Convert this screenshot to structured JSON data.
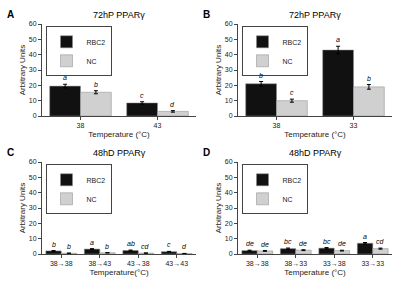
{
  "chart_data": [
    {
      "type": "bar",
      "title": "72hP PPARγ",
      "annotations": [
        "A"
      ],
      "categories": [
        "38",
        "43"
      ],
      "xlabel": "Temperature (°C)",
      "ylabel": "Arbitrary Units",
      "ylim": [
        0,
        60
      ],
      "yticks": [
        0,
        10,
        20,
        30,
        40,
        50,
        60
      ],
      "grid": false,
      "legend": "upper left",
      "series": [
        {
          "name": "RBC2",
          "color": "#111111",
          "values": [
            19.5,
            8.5
          ],
          "errors": [
            1.2,
            0.8
          ],
          "letters": [
            "a",
            "c"
          ]
        },
        {
          "name": "NC",
          "color": "#d0d0d0",
          "values": [
            15.5,
            3.0
          ],
          "errors": [
            1.0,
            0.5
          ],
          "letters": [
            "b",
            "d"
          ]
        }
      ]
    },
    {
      "type": "bar",
      "title": "72hP PPARγ",
      "annotations": [
        "B"
      ],
      "categories": [
        "38",
        "33"
      ],
      "xlabel": "Temperature (°C)",
      "ylabel": "Arbitrary Units",
      "ylim": [
        0,
        60
      ],
      "yticks": [
        0,
        10,
        20,
        30,
        40,
        50,
        60
      ],
      "grid": false,
      "legend": "upper left",
      "series": [
        {
          "name": "RBC2",
          "color": "#111111",
          "values": [
            21.0,
            43.0
          ],
          "errors": [
            1.5,
            2.5
          ],
          "letters": [
            "b",
            "a"
          ]
        },
        {
          "name": "NC",
          "color": "#d0d0d0",
          "values": [
            10.0,
            19.0
          ],
          "errors": [
            1.0,
            1.5
          ],
          "letters": [
            "c",
            "b"
          ]
        }
      ]
    },
    {
      "type": "bar",
      "title": "48hD PPARγ",
      "annotations": [
        "C"
      ],
      "categories": [
        "38→38",
        "38→43",
        "43→38",
        "43→43"
      ],
      "xlabel": "Temperature(°C)",
      "ylabel": "Arbitrary Units",
      "ylim": [
        0,
        60
      ],
      "yticks": [
        0,
        10,
        20,
        30,
        40,
        50,
        60
      ],
      "grid": false,
      "legend": "upper left",
      "series": [
        {
          "name": "RBC2",
          "color": "#111111",
          "values": [
            2.0,
            3.2,
            2.3,
            1.5
          ],
          "errors": [
            0.25,
            0.3,
            0.25,
            0.2
          ],
          "letters": [
            "b",
            "a",
            "ab",
            "c"
          ]
        },
        {
          "name": "NC",
          "color": "#d0d0d0",
          "values": [
            0.5,
            0.8,
            0.6,
            0.3
          ],
          "errors": [
            0.1,
            0.15,
            0.1,
            0.08
          ],
          "letters": [
            "b",
            "b",
            "cd",
            "d"
          ]
        }
      ]
    },
    {
      "type": "bar",
      "title": "48hD PPARγ",
      "annotations": [
        "D"
      ],
      "categories": [
        "38→38",
        "38→33",
        "33→38",
        "33→33"
      ],
      "xlabel": "Temperature (°C)",
      "ylabel": "Arbitrary Units",
      "ylim": [
        0,
        60
      ],
      "yticks": [
        0,
        10,
        20,
        30,
        40,
        50,
        60
      ],
      "grid": false,
      "legend": "upper left",
      "series": [
        {
          "name": "RBC2",
          "color": "#111111",
          "values": [
            2.2,
            3.5,
            3.8,
            7.0
          ],
          "errors": [
            0.3,
            0.4,
            0.4,
            0.5
          ],
          "letters": [
            "de",
            "bc",
            "bc",
            "a"
          ]
        },
        {
          "name": "NC",
          "color": "#d0d0d0",
          "values": [
            2.0,
            2.5,
            2.2,
            3.5
          ],
          "errors": [
            0.25,
            0.3,
            0.25,
            0.35
          ],
          "letters": [
            "de",
            "de",
            "de",
            "cd"
          ]
        }
      ]
    }
  ]
}
